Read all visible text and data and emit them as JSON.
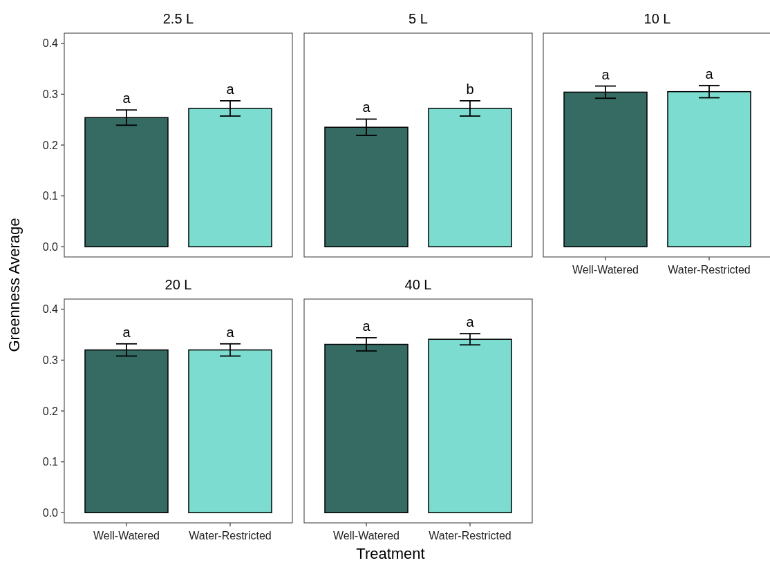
{
  "chart_data": [
    {
      "type": "bar",
      "title": "2.5 L",
      "ylabel": "Greenness Average",
      "categories": [
        "Well-Watered",
        "Water-Restricted"
      ],
      "values": [
        0.254,
        0.272
      ],
      "colors": [
        "#356b62",
        "#7cdcd0"
      ],
      "errors": [
        0.015,
        0.015
      ],
      "ylim": [
        -0.02,
        0.42
      ],
      "yticks": [
        {
          "value": 0,
          "label": "0.0"
        },
        0.1,
        0.2,
        0.3,
        0.4
      ],
      "tick_labels": "y",
      "grid": false,
      "annotations": [
        {
          "text": "a",
          "x": "Well-Watered",
          "y": 0.269
        },
        {
          "text": "a",
          "x": "Water-Restricted",
          "y": 0.287
        }
      ]
    },
    {
      "type": "bar",
      "title": "5 L",
      "categories": [
        "Well-Watered",
        "Water-Restricted"
      ],
      "values": [
        0.235,
        0.272
      ],
      "colors": [
        "#356b62",
        "#7cdcd0"
      ],
      "errors": [
        0.016,
        0.015
      ],
      "ylim": [
        -0.02,
        0.42
      ],
      "tick_labels": false,
      "grid": false,
      "annotations": [
        {
          "text": "a",
          "x": "Well-Watered",
          "y": 0.251
        },
        {
          "text": "b",
          "x": "Water-Restricted",
          "y": 0.287
        }
      ]
    },
    {
      "type": "bar",
      "title": "10 L",
      "categories": [
        "Well-Watered",
        "Water-Restricted"
      ],
      "values": [
        0.304,
        0.305
      ],
      "colors": [
        "#356b62",
        "#7cdcd0"
      ],
      "errors": [
        0.012,
        0.012
      ],
      "ylim": [
        -0.02,
        0.42
      ],
      "tick_labels": "x",
      "grid": false,
      "annotations": [
        {
          "text": "a",
          "x": "Well-Watered",
          "y": 0.316
        },
        {
          "text": "a",
          "x": "Water-Restricted",
          "y": 0.317
        }
      ]
    },
    {
      "type": "bar",
      "title": "20 L",
      "categories": [
        "Well-Watered",
        "Water-Restricted"
      ],
      "values": [
        0.32,
        0.32
      ],
      "colors": [
        "#356b62",
        "#7cdcd0"
      ],
      "errors": [
        0.012,
        0.012
      ],
      "ylim": [
        -0.02,
        0.42
      ],
      "yticks": [
        {
          "value": 0,
          "label": "0.0"
        },
        0.1,
        0.2,
        0.3,
        0.4
      ],
      "grid": false,
      "annotations": [
        {
          "text": "a",
          "x": "Well-Watered",
          "y": 0.332
        },
        {
          "text": "a",
          "x": "Water-Restricted",
          "y": 0.332
        }
      ]
    },
    {
      "type": "bar",
      "title": "40 L",
      "xlabel": "Treatment",
      "categories": [
        "Well-Watered",
        "Water-Restricted"
      ],
      "values": [
        0.331,
        0.341
      ],
      "colors": [
        "#356b62",
        "#7cdcd0"
      ],
      "errors": [
        0.013,
        0.011
      ],
      "ylim": [
        -0.02,
        0.42
      ],
      "tick_labels": "x",
      "grid": false,
      "annotations": [
        {
          "text": "a",
          "x": "Well-Watered",
          "y": 0.344
        },
        {
          "text": "a",
          "x": "Water-Restricted",
          "y": 0.352
        }
      ]
    }
  ]
}
